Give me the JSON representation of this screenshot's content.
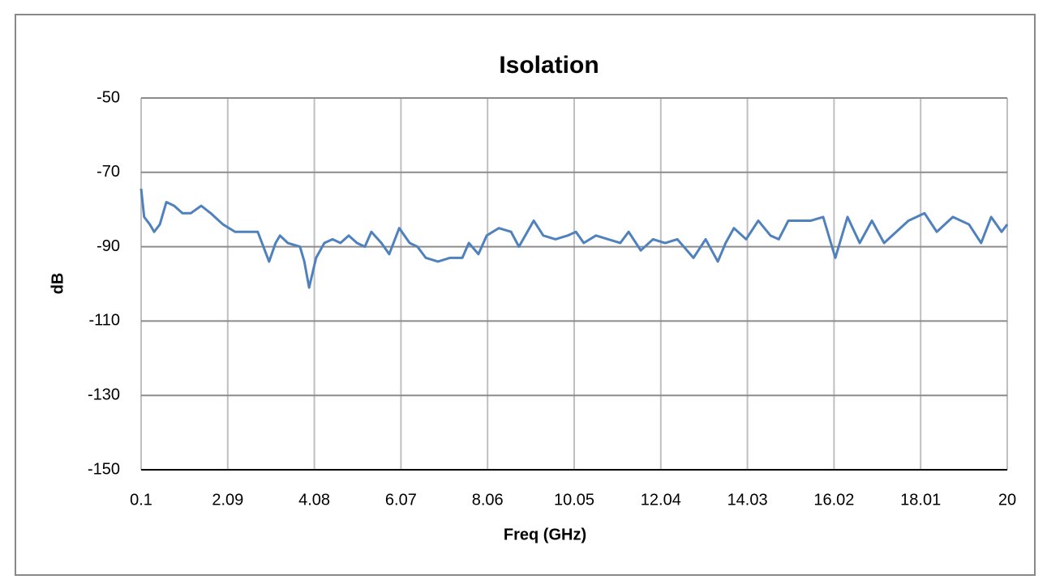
{
  "chart_data": {
    "type": "line",
    "title": "Isolation",
    "x_label": "Freq (GHz)",
    "y_label": "dB",
    "x": [
      0.1,
      0.17,
      0.3,
      0.4,
      0.53,
      0.68,
      0.86,
      1.05,
      1.24,
      1.48,
      1.7,
      1.98,
      2.26,
      2.54,
      2.78,
      2.91,
      3.04,
      3.19,
      3.29,
      3.47,
      3.75,
      3.85,
      3.96,
      4.12,
      4.31,
      4.5,
      4.68,
      4.87,
      5.06,
      5.24,
      5.39,
      5.62,
      5.8,
      6.03,
      6.27,
      6.45,
      6.64,
      6.92,
      7.2,
      7.48,
      7.63,
      7.85,
      8.04,
      8.32,
      8.6,
      8.78,
      9.12,
      9.34,
      9.62,
      9.9,
      10.09,
      10.27,
      10.55,
      10.83,
      11.11,
      11.3,
      11.58,
      11.86,
      12.14,
      12.42,
      12.79,
      13.07,
      13.35,
      13.53,
      13.72,
      14.0,
      14.28,
      14.56,
      14.75,
      14.97,
      15.21,
      15.49,
      15.77,
      16.05,
      16.33,
      16.61,
      16.89,
      17.17,
      17.45,
      17.73,
      18.1,
      18.38,
      18.75,
      19.12,
      19.4,
      19.63,
      19.87,
      20
    ],
    "series": [
      {
        "name": "Isolation",
        "color": "#4f81bd",
        "values": [
          -74.4,
          -82,
          -84,
          -86,
          -84,
          -78,
          -79,
          -81,
          -81,
          -79,
          -81,
          -84,
          -86,
          -86,
          -86,
          -90,
          -94,
          -89,
          -87,
          -89,
          -90,
          -94,
          -101,
          -93,
          -89,
          -88,
          -89,
          -87,
          -89,
          -90,
          -86,
          -89,
          -92,
          -85,
          -89,
          -90,
          -93,
          -94,
          -93,
          -93,
          -89,
          -92,
          -87,
          -85,
          -86,
          -90,
          -83,
          -87,
          -88,
          -87,
          -86,
          -89,
          -87,
          -88,
          -89,
          -86,
          -91,
          -88,
          -89,
          -88,
          -93,
          -88,
          -94,
          -89,
          -85,
          -88,
          -83,
          -87,
          -88,
          -83,
          -83,
          -83,
          -82,
          -93,
          -82,
          -89,
          -83,
          -89,
          -86,
          -83,
          -81,
          -86,
          -82,
          -84,
          -89,
          -82,
          -86,
          -84
        ]
      }
    ],
    "xlim": [
      0.1,
      20
    ],
    "xticks": [
      0.1,
      2.09,
      4.08,
      6.07,
      8.06,
      10.05,
      12.04,
      14.03,
      16.02,
      18.01,
      20
    ],
    "ylim": [
      -150,
      -50
    ],
    "yticks": [
      -150,
      -130,
      -110,
      -90,
      -70,
      -50
    ],
    "grid": true
  }
}
